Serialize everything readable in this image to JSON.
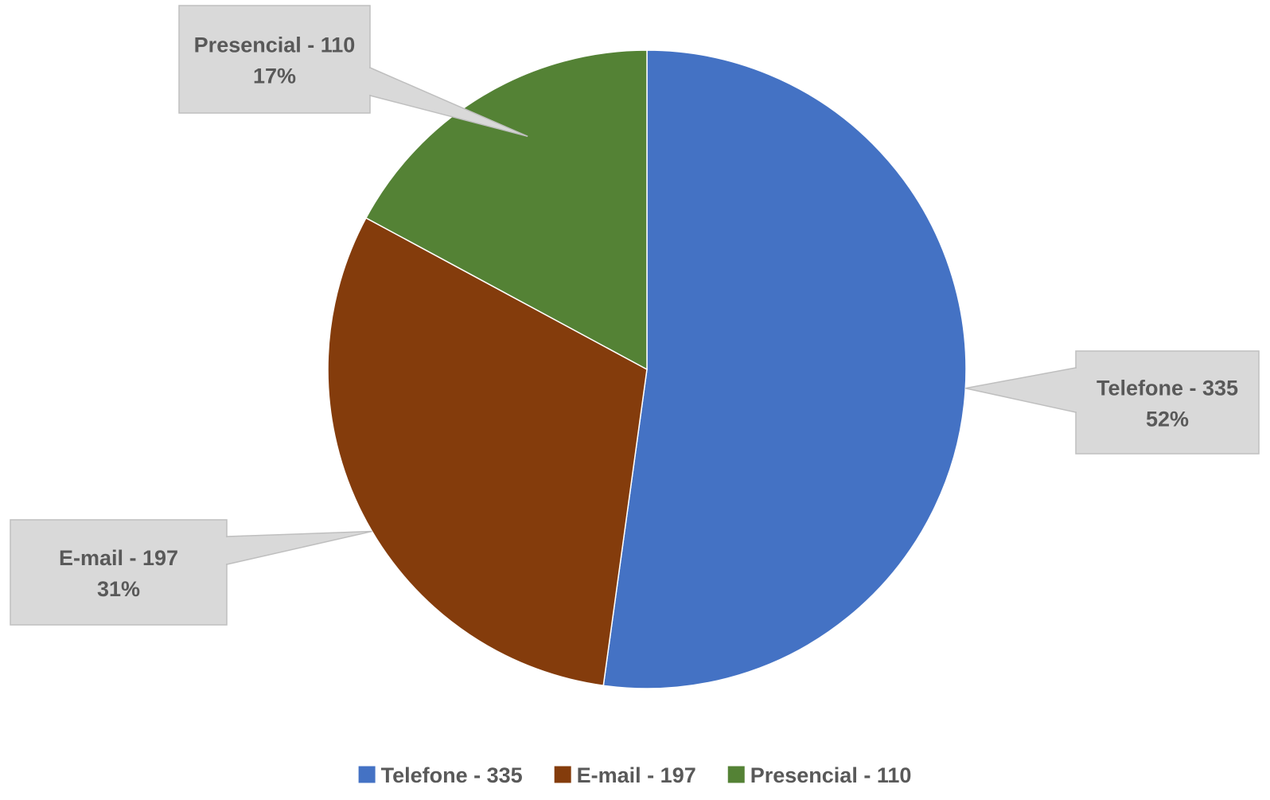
{
  "chart_data": {
    "type": "pie",
    "title": "",
    "slices": [
      {
        "label": "Telefone - 335",
        "value": 335,
        "percent_label": "52%",
        "color": "#4472C4"
      },
      {
        "label": "E-mail - 197",
        "value": 197,
        "percent_label": "31%",
        "color": "#843C0C"
      },
      {
        "label": "Presencial - 110",
        "value": 110,
        "percent_label": "17%",
        "color": "#548235"
      }
    ],
    "start_angle": "12 o'clock",
    "direction": "clockwise",
    "data_labels": "callouts",
    "legend_position": "bottom"
  },
  "style": {
    "callout_fill": "#D9D9D9",
    "callout_stroke": "#BFBFBF",
    "text_color": "#595959",
    "slice_stroke": "#FFFFFF"
  }
}
